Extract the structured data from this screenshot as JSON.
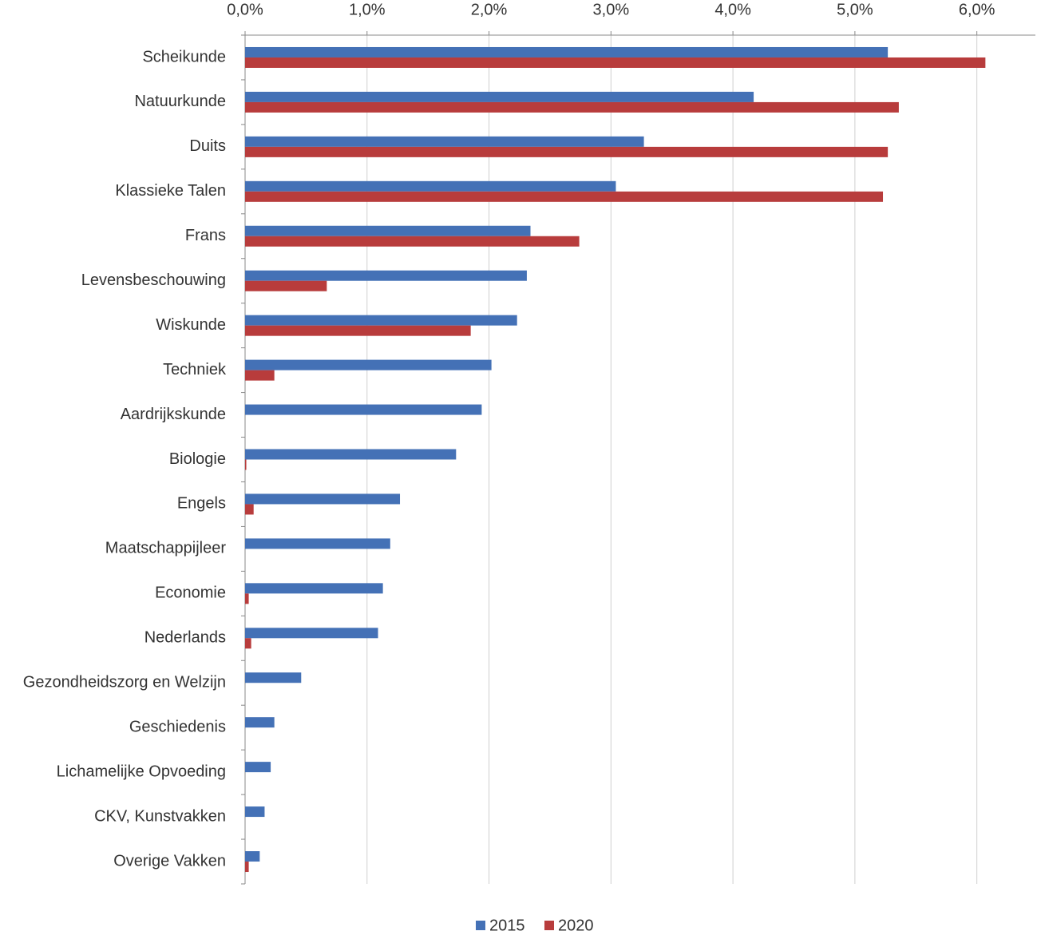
{
  "chart_data": {
    "type": "bar",
    "orientation": "horizontal",
    "categories": [
      "Scheikunde",
      "Natuurkunde",
      "Duits",
      "Klassieke Talen",
      "Frans",
      "Levensbeschouwing",
      "Wiskunde",
      "Techniek",
      "Aardrijkskunde",
      "Biologie",
      "Engels",
      "Maatschappijleer",
      "Economie",
      "Nederlands",
      "Gezondheidszorg en Welzijn",
      "Geschiedenis",
      "Lichamelijke Opvoeding",
      "CKV, Kunstvakken",
      "Overige Vakken"
    ],
    "series": [
      {
        "name": "2015",
        "color": "#4471b6",
        "values": [
          5.27,
          4.17,
          3.27,
          3.04,
          2.34,
          2.31,
          2.23,
          2.02,
          1.94,
          1.73,
          1.27,
          1.19,
          1.13,
          1.09,
          0.46,
          0.24,
          0.21,
          0.16,
          0.12
        ]
      },
      {
        "name": "2020",
        "color": "#b83c3c",
        "values": [
          6.07,
          5.36,
          5.27,
          5.23,
          2.74,
          0.67,
          1.85,
          0.24,
          0,
          0.01,
          0.07,
          0,
          0.03,
          0.05,
          0,
          0,
          0,
          0,
          0.03
        ]
      }
    ],
    "xlim": [
      0,
      6.48
    ],
    "xticks": [
      {
        "value": 0,
        "label": "0,0%"
      },
      {
        "value": 1,
        "label": "1,0%"
      },
      {
        "value": 2,
        "label": "2,0%"
      },
      {
        "value": 3,
        "label": "3,0%"
      },
      {
        "value": 4,
        "label": "4,0%"
      },
      {
        "value": 5,
        "label": "5,0%"
      },
      {
        "value": 6,
        "label": "6,0%"
      }
    ],
    "grid": true,
    "legend": "bottom"
  }
}
